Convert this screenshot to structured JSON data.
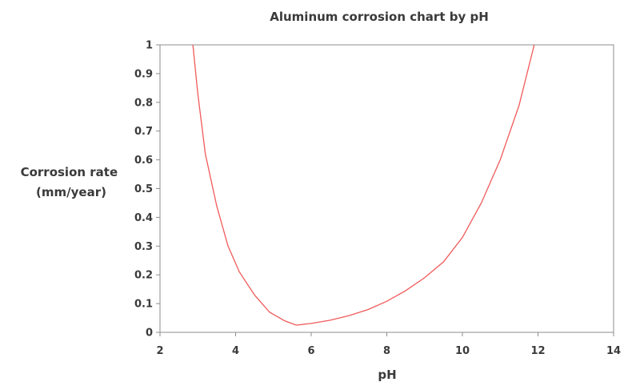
{
  "chart_data": {
    "type": "line",
    "title": "Aluminum corrosion chart by pH",
    "xlabel": "pH",
    "ylabel_lines": [
      "Corrosion rate",
      "(mm/year)"
    ],
    "xlim": [
      2,
      14
    ],
    "ylim": [
      0,
      1
    ],
    "x_ticks": [
      "2",
      "4",
      "6",
      "8",
      "10",
      "12",
      "14"
    ],
    "y_ticks": [
      "0",
      "0.1",
      "0.2",
      "0.3",
      "0.4",
      "0.5",
      "0.6",
      "0.7",
      "0.8",
      "0.9",
      "1"
    ],
    "grid": false,
    "colors": {
      "series": "#f05a5a",
      "axis": "#8c8c8c",
      "text": "#3a3a3a"
    },
    "series": [
      {
        "x": [
          2.87,
          3.0,
          3.2,
          3.5,
          3.8,
          4.1,
          4.5,
          4.9,
          5.3,
          5.6,
          6.0,
          6.5,
          7.0,
          7.5,
          8.0,
          8.5,
          9.0,
          9.5,
          10.0,
          10.5,
          11.0,
          11.5,
          11.9
        ],
        "y": [
          1.0,
          0.83,
          0.62,
          0.44,
          0.3,
          0.21,
          0.13,
          0.07,
          0.04,
          0.025,
          0.031,
          0.042,
          0.058,
          0.079,
          0.108,
          0.145,
          0.19,
          0.245,
          0.33,
          0.45,
          0.6,
          0.79,
          1.0
        ]
      }
    ]
  }
}
